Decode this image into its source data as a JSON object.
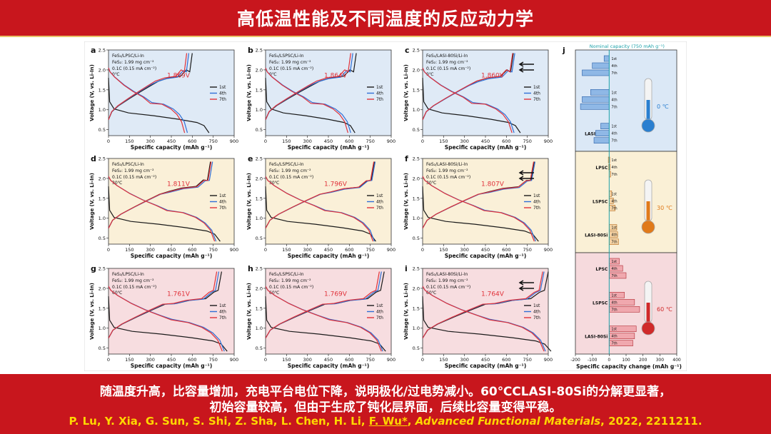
{
  "page_title": "高低温性能及不同温度的反应动力学",
  "caption": {
    "line1": "随温度升高，比容量增加，充电平台电位下降，说明极化/过电势减小。60℃CLASI-80Si的分解更显著，",
    "line2": "初始容量较高，但由于生成了钝化层界面，后续比容量变得平稳。",
    "ref_authors": "P. Lu,  Y. Xia, G. Sun, S. Shi, Z. Sha, L. Chen, H. Li, ",
    "ref_corresponding": "F. Wu*",
    "ref_sep": ", ",
    "ref_journal": "Advanced Functional Materials",
    "ref_tail": ", 2022, 2211211."
  },
  "chart_data": {
    "type": "line",
    "xlabel": "Specific capacity (mAh g⁻¹)",
    "ylabel": "Voltage (V, vs. Li-In)",
    "xticks": [
      0,
      150,
      300,
      450,
      600,
      750,
      900
    ],
    "yticks": [
      0.5,
      1.0,
      1.5,
      2.0,
      2.5
    ],
    "xlim": [
      0,
      900
    ],
    "ylim": [
      0.35,
      2.5
    ],
    "legend": [
      "1st",
      "4th",
      "7th"
    ],
    "series_colors": [
      "#1a1a1a",
      "#2f6fd6",
      "#e0323a"
    ],
    "loading": "FeS₂: 1.99 mg cm⁻²",
    "rate": "0.1C (0.15 mA cm⁻²)",
    "panels": [
      {
        "letter": "a",
        "cell": "FeS₂/LPSC/Li-In",
        "temp": "0℃",
        "plateau": "1.869V",
        "bg": "#dfeaf6",
        "row": 0,
        "col": 0,
        "d1": [
          720,
          660
        ],
        "c1": [
          600,
          1.8
        ],
        "d4": [
          565,
          1.18
        ],
        "d7": [
          545,
          1.16
        ],
        "c4": [
          575,
          1.78
        ],
        "c7": [
          560,
          1.8
        ],
        "arrows": false
      },
      {
        "letter": "b",
        "cell": "FeS₂/LSPSC/Li-In",
        "temp": "0℃",
        "plateau": "1.864V",
        "bg": "#dfeaf6",
        "row": 0,
        "col": 1,
        "d1": [
          640,
          620
        ],
        "c1": [
          650,
          1.8
        ],
        "d4": [
          610,
          1.18
        ],
        "d7": [
          590,
          1.16
        ],
        "c4": [
          625,
          1.78
        ],
        "c7": [
          610,
          1.8
        ],
        "arrows": false
      },
      {
        "letter": "c",
        "cell": "FeS₂/LASI-80Si/Li-In",
        "temp": "0℃",
        "plateau": "1.860V",
        "bg": "#dfeaf6",
        "row": 0,
        "col": 2,
        "d1": [
          700,
          680
        ],
        "c1": [
          650,
          1.8
        ],
        "d4": [
          655,
          1.18
        ],
        "d7": [
          640,
          1.16
        ],
        "c4": [
          660,
          1.78
        ],
        "c7": [
          645,
          1.8
        ],
        "arrows": true
      },
      {
        "letter": "d",
        "cell": "FeS₂/LPSC/Li-In",
        "temp": "30℃",
        "plateau": "1.811V",
        "bg": "#faf0d8",
        "row": 1,
        "col": 0,
        "d1": [
          800,
          730
        ],
        "c1": [
          730,
          1.76
        ],
        "d4": [
          770,
          1.2
        ],
        "d7": [
          760,
          1.19
        ],
        "c4": [
          745,
          1.74
        ],
        "c7": [
          735,
          1.75
        ],
        "arrows": false
      },
      {
        "letter": "e",
        "cell": "FeS₂/LSPSC/Li-In",
        "temp": "30℃",
        "plateau": "1.796V",
        "bg": "#faf0d8",
        "row": 1,
        "col": 1,
        "d1": [
          790,
          760
        ],
        "c1": [
          780,
          1.74
        ],
        "d4": [
          780,
          1.2
        ],
        "d7": [
          770,
          1.19
        ],
        "c4": [
          785,
          1.73
        ],
        "c7": [
          775,
          1.74
        ],
        "arrows": false
      },
      {
        "letter": "f",
        "cell": "FeS₂/LASI-80Si/Li-In",
        "temp": "30℃",
        "plateau": "1.807V",
        "bg": "#faf0d8",
        "row": 1,
        "col": 2,
        "d1": [
          830,
          800
        ],
        "c1": [
          800,
          1.75
        ],
        "d4": [
          810,
          1.2
        ],
        "d7": [
          800,
          1.19
        ],
        "c4": [
          805,
          1.73
        ],
        "c7": [
          795,
          1.74
        ],
        "arrows": true
      },
      {
        "letter": "g",
        "cell": "FeS₂/LPSC/Li-In",
        "temp": "60℃",
        "plateau": "1.761V",
        "bg": "#f7dde0",
        "row": 2,
        "col": 0,
        "d1": [
          850,
          790
        ],
        "c1": [
          810,
          1.7
        ],
        "d4": [
          830,
          1.22
        ],
        "d7": [
          815,
          1.21
        ],
        "c4": [
          790,
          1.69
        ],
        "c7": [
          775,
          1.7
        ],
        "arrows": false
      },
      {
        "letter": "h",
        "cell": "FeS₂/LSPSC/Li-In",
        "temp": "60℃",
        "plateau": "1.769V",
        "bg": "#f7dde0",
        "row": 2,
        "col": 1,
        "d1": [
          860,
          820
        ],
        "c1": [
          850,
          1.7
        ],
        "d4": [
          840,
          1.22
        ],
        "d7": [
          830,
          1.21
        ],
        "c4": [
          830,
          1.69
        ],
        "c7": [
          815,
          1.7
        ],
        "arrows": false
      },
      {
        "letter": "i",
        "cell": "FeS₂/LASI-80Si/Li-In",
        "temp": "60℃",
        "plateau": "1.764V",
        "bg": "#f7dde0",
        "row": 2,
        "col": 2,
        "d1": [
          920,
          880
        ],
        "c1": [
          900,
          1.7
        ],
        "d4": [
          880,
          1.22
        ],
        "d7": [
          870,
          1.21
        ],
        "c4": [
          870,
          1.69
        ],
        "c7": [
          860,
          1.7
        ],
        "arrows": true
      }
    ],
    "bar_panel": {
      "letter": "j",
      "type": "bar",
      "nominal": "Nominal capacity (750 mAh g⁻¹)",
      "xlabel": "Specific capacity change (mAh g⁻¹)",
      "xticks": [
        -200,
        -100,
        0,
        100,
        200,
        300,
        400
      ],
      "xlim": [
        -200,
        400
      ],
      "groups": [
        {
          "temp": "0 ℃",
          "bg": "#dbe8f6",
          "color": "#8fb8e6",
          "stroke": "#2a5fa8",
          "label_color": "#2a7fd0",
          "items": [
            {
              "name": "LPSC",
              "values": [
                -30,
                -100,
                -160
              ]
            },
            {
              "name": "LSPSC",
              "values": [
                -110,
                -160,
                -170
              ]
            },
            {
              "name": "LASI-80Si",
              "values": [
                -50,
                -80,
                -90
              ]
            }
          ]
        },
        {
          "temp": "30 ℃",
          "bg": "#faf0d6",
          "color": "#f3d2a4",
          "stroke": "#b46a1c",
          "label_color": "#e07a1a",
          "items": [
            {
              "name": "LPSC",
              "values": [
                -5,
                -3,
                0
              ]
            },
            {
              "name": "LSPSC",
              "values": [
                15,
                25,
                35
              ]
            },
            {
              "name": "LASI-80Si",
              "values": [
                45,
                50,
                55
              ]
            }
          ]
        },
        {
          "temp": "60 ℃",
          "bg": "#f6dadd",
          "color": "#f0a8ae",
          "stroke": "#b02a32",
          "label_color": "#d02a2a",
          "items": [
            {
              "name": "LPSC",
              "values": [
                60,
                80,
                100
              ]
            },
            {
              "name": "LSPSC",
              "values": [
                90,
                150,
                180
              ]
            },
            {
              "name": "LASI-80Si",
              "values": [
                160,
                150,
                140
              ]
            }
          ]
        }
      ],
      "cycles": [
        "1st",
        "4th",
        "7th"
      ]
    }
  }
}
